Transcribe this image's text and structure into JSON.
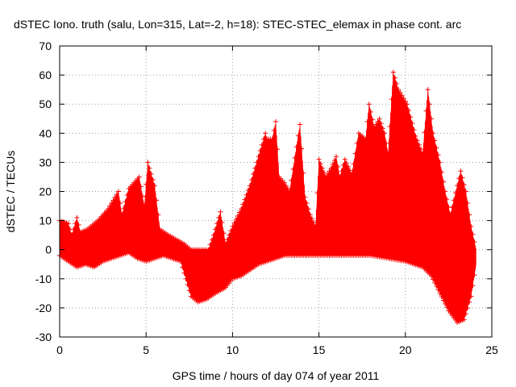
{
  "chart_data": {
    "type": "line",
    "title": "dSTEC Iono. truth (salu, Lon=315, Lat=-2, h=18): STEC-STEC_elemax in phase cont. arc",
    "xlabel": "GPS time / hours of day 074 of year 2011",
    "ylabel": "dSTEC  / TECUs",
    "xlim": [
      0,
      25
    ],
    "ylim": [
      -30,
      70
    ],
    "x_ticks": [
      0,
      5,
      10,
      15,
      20,
      25
    ],
    "y_ticks": [
      -30,
      -20,
      -10,
      0,
      10,
      20,
      30,
      40,
      50,
      60,
      70
    ],
    "grid": true,
    "marker": "plus",
    "series_color": "#ff0000",
    "series": [
      {
        "envelope_upper": [
          [
            0.0,
            10
          ],
          [
            0.5,
            9
          ],
          [
            0.7,
            5
          ],
          [
            1.0,
            11
          ],
          [
            1.2,
            6
          ],
          [
            1.6,
            7
          ],
          [
            2.2,
            10
          ],
          [
            2.8,
            14
          ],
          [
            3.4,
            20
          ],
          [
            3.6,
            12
          ],
          [
            4.0,
            21
          ],
          [
            4.6,
            25
          ],
          [
            4.9,
            15
          ],
          [
            5.1,
            30
          ],
          [
            5.5,
            22
          ],
          [
            5.8,
            7
          ],
          [
            6.3,
            5
          ],
          [
            7.2,
            2
          ],
          [
            7.6,
            0
          ],
          [
            8.0,
            0
          ],
          [
            8.6,
            0
          ],
          [
            8.9,
            5
          ],
          [
            9.3,
            13
          ],
          [
            9.6,
            2
          ],
          [
            10.0,
            8
          ],
          [
            10.5,
            14
          ],
          [
            11.0,
            22
          ],
          [
            11.5,
            32
          ],
          [
            11.9,
            40
          ],
          [
            12.0,
            38
          ],
          [
            12.3,
            38
          ],
          [
            12.5,
            44
          ],
          [
            12.7,
            25
          ],
          [
            13.0,
            23
          ],
          [
            13.3,
            20
          ],
          [
            13.9,
            43
          ],
          [
            14.2,
            18
          ],
          [
            14.5,
            12
          ],
          [
            14.8,
            8
          ],
          [
            15.0,
            31
          ],
          [
            15.4,
            25
          ],
          [
            15.7,
            28
          ],
          [
            16.0,
            32
          ],
          [
            16.2,
            25
          ],
          [
            16.5,
            31
          ],
          [
            16.9,
            26
          ],
          [
            17.3,
            40
          ],
          [
            17.7,
            38
          ],
          [
            17.9,
            50
          ],
          [
            18.2,
            42
          ],
          [
            18.5,
            45
          ],
          [
            18.8,
            40
          ],
          [
            19.0,
            33
          ],
          [
            19.3,
            61
          ],
          [
            19.6,
            55
          ],
          [
            20.1,
            50
          ],
          [
            20.6,
            39
          ],
          [
            21.0,
            33
          ],
          [
            21.3,
            55
          ],
          [
            21.6,
            40
          ],
          [
            22.0,
            30
          ],
          [
            22.3,
            20
          ],
          [
            22.6,
            12
          ],
          [
            23.0,
            22
          ],
          [
            23.2,
            27
          ],
          [
            23.5,
            20
          ],
          [
            23.8,
            8
          ],
          [
            24.1,
            0
          ]
        ],
        "envelope_lower": [
          [
            0.0,
            -2
          ],
          [
            0.5,
            -4
          ],
          [
            1.0,
            -6
          ],
          [
            1.5,
            -5
          ],
          [
            2.0,
            -6
          ],
          [
            2.5,
            -4
          ],
          [
            3.0,
            -3
          ],
          [
            3.5,
            -2
          ],
          [
            4.0,
            -1
          ],
          [
            4.5,
            -3
          ],
          [
            5.0,
            -4
          ],
          [
            5.5,
            -3
          ],
          [
            6.0,
            -2
          ],
          [
            6.5,
            -3
          ],
          [
            7.0,
            -4
          ],
          [
            7.6,
            -16
          ],
          [
            8.0,
            -18
          ],
          [
            8.5,
            -17
          ],
          [
            9.0,
            -15
          ],
          [
            9.6,
            -13
          ],
          [
            10.0,
            -10
          ],
          [
            10.5,
            -9
          ],
          [
            11.0,
            -7
          ],
          [
            11.5,
            -5
          ],
          [
            12.0,
            -4
          ],
          [
            12.5,
            -3
          ],
          [
            13.0,
            -2
          ],
          [
            13.5,
            -2
          ],
          [
            14.0,
            -2
          ],
          [
            15.0,
            -2
          ],
          [
            16.0,
            -2
          ],
          [
            17.0,
            -2
          ],
          [
            18.0,
            -2
          ],
          [
            19.0,
            -3
          ],
          [
            20.0,
            -4
          ],
          [
            21.0,
            -6
          ],
          [
            21.5,
            -9
          ],
          [
            22.0,
            -15
          ],
          [
            22.5,
            -21
          ],
          [
            23.0,
            -25
          ],
          [
            23.4,
            -24
          ],
          [
            23.8,
            -16
          ],
          [
            24.1,
            -5
          ]
        ]
      }
    ]
  }
}
